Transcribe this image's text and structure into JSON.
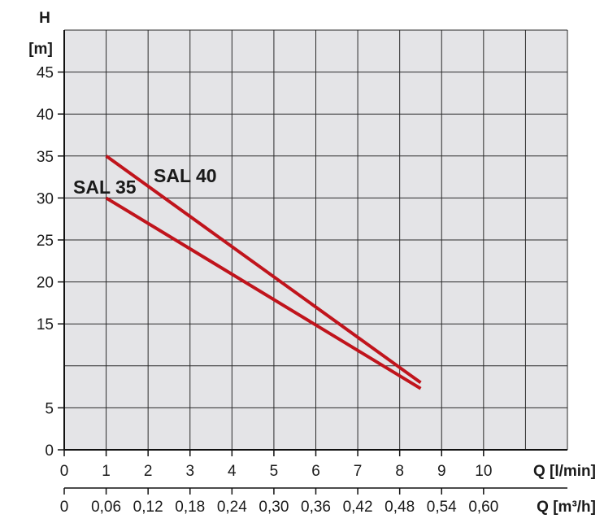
{
  "chart_data": {
    "type": "line",
    "title": "",
    "ylabel_top": "H",
    "ylabel_unit": "[m]",
    "xlabel": "Q [l/min]",
    "xlabel2": "Q [m³/h]",
    "xlim": [
      0,
      12
    ],
    "ylim": [
      0,
      50
    ],
    "y_ticks": [
      0,
      5,
      15,
      20,
      25,
      30,
      35,
      40,
      45
    ],
    "x_ticks": [
      "0",
      "1",
      "2",
      "3",
      "4",
      "5",
      "6",
      "7",
      "8",
      "9",
      "10"
    ],
    "x2_ticks": [
      "0",
      "0,06",
      "0,12",
      "0,18",
      "0,24",
      "0,30",
      "0,36",
      "0,42",
      "0,48",
      "0,54",
      "0,60"
    ],
    "grid": true,
    "background_color": "#e4e4e7",
    "line_color": "#c0141c",
    "series": [
      {
        "name": "SAL 40",
        "x": [
          1,
          8.5
        ],
        "y": [
          35,
          8
        ]
      },
      {
        "name": "SAL 35",
        "x": [
          1,
          8.5
        ],
        "y": [
          30,
          7.3
        ]
      }
    ]
  }
}
